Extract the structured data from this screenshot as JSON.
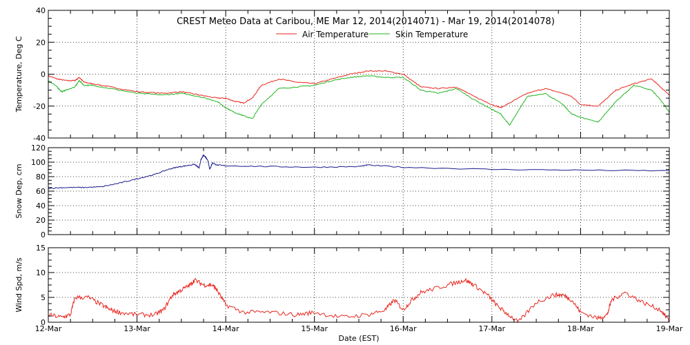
{
  "chart_data": {
    "title": "CREST Meteo Data at Caribou, ME   Mar 12, 2014(2014071) - Mar 19, 2014(2014078)",
    "xlabel": "Date (EST)",
    "xticks": [
      "12-Mar",
      "13-Mar",
      "14-Mar",
      "15-Mar",
      "16-Mar",
      "17-Mar",
      "18-Mar",
      "19-Mar"
    ],
    "xlim": [
      0,
      7
    ],
    "grid": true,
    "legend_position": "top-center",
    "panels": [
      {
        "type": "line",
        "ylabel": "Temperature, Deg C",
        "ylim": [
          -40,
          40
        ],
        "yticks": [
          "-40",
          "-20",
          "0",
          "20",
          "40"
        ],
        "series": [
          {
            "name": "Air Temperature",
            "color": "#e8241c",
            "x": [
              0,
              0.1,
              0.2,
              0.3,
              0.35,
              0.4,
              0.5,
              0.7,
              1.0,
              1.3,
              1.5,
              1.7,
              1.9,
              2.0,
              2.1,
              2.2,
              2.3,
              2.4,
              2.6,
              2.8,
              3.0,
              3.2,
              3.4,
              3.6,
              3.8,
              4.0,
              4.2,
              4.4,
              4.6,
              4.8,
              5.0,
              5.1,
              5.2,
              5.4,
              5.6,
              5.8,
              5.9,
              6.0,
              6.2,
              6.4,
              6.6,
              6.8,
              6.9,
              7.0
            ],
            "values": [
              -1,
              -3,
              -4,
              -4,
              -2,
              -5,
              -6,
              -8,
              -11,
              -12,
              -11,
              -13,
              -15,
              -15,
              -17,
              -18,
              -15,
              -7,
              -3,
              -5,
              -6,
              -3,
              0,
              2,
              2,
              0,
              -8,
              -9,
              -8,
              -14,
              -19,
              -21,
              -18,
              -12,
              -9,
              -12,
              -14,
              -19,
              -20,
              -10,
              -6,
              -3,
              -8,
              -13
            ]
          },
          {
            "name": "Skin Temperature",
            "color": "#1fb51f",
            "x": [
              0,
              0.1,
              0.15,
              0.2,
              0.3,
              0.35,
              0.4,
              0.5,
              0.7,
              1.0,
              1.3,
              1.5,
              1.7,
              1.9,
              2.0,
              2.1,
              2.2,
              2.3,
              2.4,
              2.6,
              2.8,
              3.0,
              3.2,
              3.4,
              3.6,
              3.8,
              4.0,
              4.2,
              4.4,
              4.6,
              4.8,
              5.0,
              5.1,
              5.2,
              5.4,
              5.6,
              5.8,
              5.9,
              6.0,
              6.2,
              6.4,
              6.6,
              6.8,
              6.9,
              7.0
            ],
            "values": [
              -4,
              -8,
              -11,
              -10,
              -8,
              -4,
              -7,
              -7,
              -9,
              -12,
              -13,
              -12,
              -14,
              -17,
              -21,
              -24,
              -26,
              -28,
              -19,
              -9,
              -8,
              -7,
              -4,
              -2,
              -1,
              -2,
              -2,
              -10,
              -12,
              -9,
              -16,
              -22,
              -25,
              -32,
              -14,
              -12,
              -19,
              -25,
              -27,
              -30,
              -17,
              -7,
              -10,
              -16,
              -24
            ]
          }
        ]
      },
      {
        "type": "line",
        "ylabel": "Snow Dep, cm",
        "ylim": [
          0,
          120
        ],
        "yticks": [
          "0",
          "20",
          "40",
          "60",
          "80",
          "100",
          "120"
        ],
        "series": [
          {
            "color": "#1a1a8c",
            "x": [
              0,
              0.2,
              0.4,
              0.6,
              0.8,
              1.0,
              1.2,
              1.35,
              1.45,
              1.55,
              1.65,
              1.7,
              1.72,
              1.75,
              1.78,
              1.8,
              1.82,
              1.85,
              1.9,
              2.0,
              2.5,
              3.0,
              3.5,
              3.6,
              4.0,
              5.0,
              6.0,
              7.0
            ],
            "values": [
              64,
              65,
              65,
              66,
              71,
              77,
              83,
              90,
              93,
              95,
              97,
              92,
              103,
              110,
              106,
              102,
              90,
              99,
              96,
              95,
              94,
              93,
              94,
              96,
              93,
              90,
              89,
              88
            ]
          }
        ]
      },
      {
        "type": "line",
        "ylabel": "Wind Spd, m/s",
        "ylim": [
          0,
          15
        ],
        "yticks": [
          "0",
          "5",
          "10",
          "15"
        ],
        "series": [
          {
            "color": "#e8241c",
            "x": [
              0,
              0.15,
              0.25,
              0.3,
              0.45,
              0.6,
              0.7,
              0.8,
              1.0,
              1.2,
              1.3,
              1.4,
              1.5,
              1.6,
              1.65,
              1.75,
              1.85,
              1.9,
              2.0,
              2.2,
              2.5,
              2.8,
              3.0,
              3.3,
              3.6,
              3.8,
              3.9,
              4.0,
              4.1,
              4.2,
              4.4,
              4.6,
              4.7,
              4.8,
              4.95,
              5.05,
              5.15,
              5.3,
              5.5,
              5.7,
              5.8,
              5.9,
              6.0,
              6.2,
              6.3,
              6.35,
              6.5,
              6.7,
              6.9,
              7.0
            ],
            "values": [
              1.5,
              1.0,
              1.5,
              5.0,
              5.0,
              3.5,
              2.5,
              2.0,
              1.5,
              1.5,
              2.5,
              5.5,
              6.5,
              7.5,
              8.5,
              7.5,
              7.5,
              6.5,
              3.5,
              2.0,
              2.0,
              1.5,
              2.0,
              1.0,
              1.5,
              2.5,
              4.5,
              2.5,
              4.5,
              6.0,
              7.0,
              8.0,
              8.5,
              7.5,
              5.5,
              3.5,
              2.0,
              0.0,
              4.0,
              5.5,
              5.5,
              4.5,
              2.0,
              0.8,
              1.5,
              4.5,
              6.0,
              4.0,
              2.5,
              0.2
            ]
          }
        ]
      }
    ]
  }
}
